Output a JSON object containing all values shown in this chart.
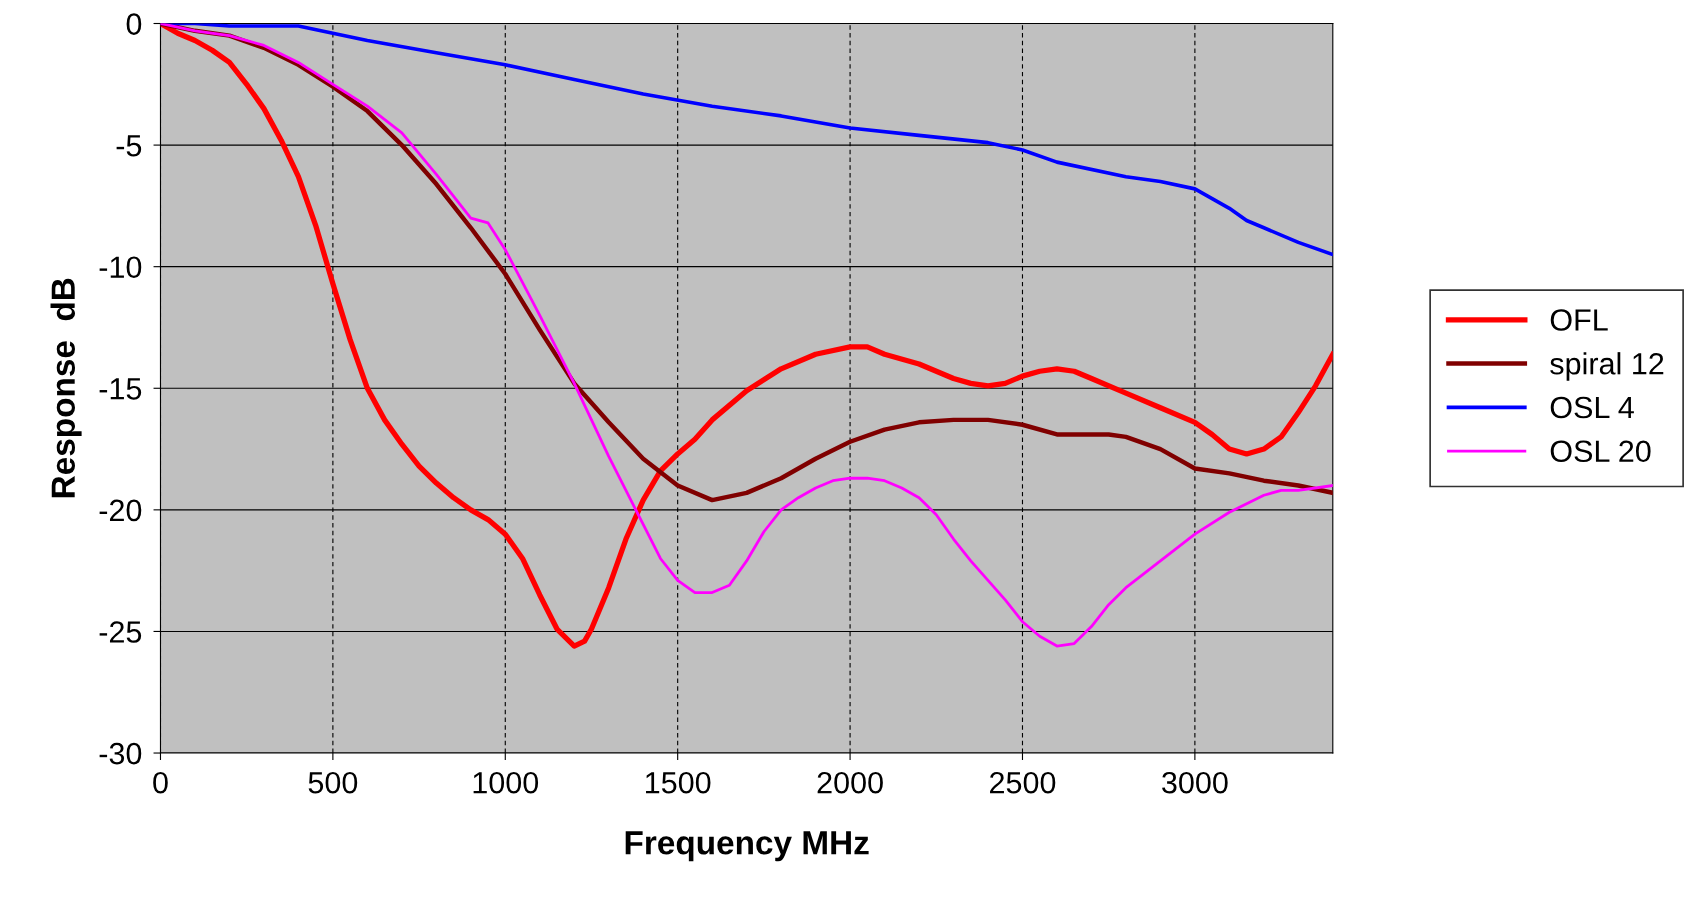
{
  "chart_data": {
    "type": "line",
    "xlabel": "Frequency MHz",
    "ylabel": "Response  dB",
    "xlim": [
      0,
      3400
    ],
    "xticks": [
      0,
      500,
      1000,
      1500,
      2000,
      2500,
      3000
    ],
    "ylim": [
      -30,
      0
    ],
    "yticks": [
      -30,
      -25,
      -20,
      -15,
      -10,
      -5,
      0
    ],
    "grid": true,
    "legend": "right",
    "marker": "none",
    "line_style": "solid",
    "series": [
      {
        "name": "OFL",
        "color": "#ff0000",
        "x": [
          0,
          50,
          100,
          150,
          200,
          250,
          300,
          350,
          400,
          450,
          500,
          550,
          600,
          650,
          700,
          750,
          800,
          850,
          900,
          950,
          1000,
          1050,
          1100,
          1150,
          1200,
          1230,
          1250,
          1300,
          1350,
          1400,
          1450,
          1500,
          1550,
          1600,
          1700,
          1800,
          1900,
          2000,
          2050,
          2100,
          2200,
          2250,
          2300,
          2350,
          2400,
          2450,
          2500,
          2550,
          2600,
          2650,
          2700,
          2800,
          2900,
          3000,
          3050,
          3100,
          3150,
          3200,
          3250,
          3300,
          3350,
          3400
        ],
        "values": [
          0,
          -0.4,
          -0.7,
          -1.1,
          -1.6,
          -2.5,
          -3.5,
          -4.8,
          -6.3,
          -8.3,
          -10.7,
          -13.0,
          -15.0,
          -16.3,
          -17.3,
          -18.2,
          -18.9,
          -19.5,
          -20.0,
          -20.4,
          -21.0,
          -22.0,
          -23.5,
          -24.9,
          -25.6,
          -25.4,
          -24.9,
          -23.2,
          -21.2,
          -19.6,
          -18.4,
          -17.7,
          -17.1,
          -16.3,
          -15.1,
          -14.2,
          -13.6,
          -13.3,
          -13.3,
          -13.6,
          -14.0,
          -14.3,
          -14.6,
          -14.8,
          -14.9,
          -14.8,
          -14.5,
          -14.3,
          -14.2,
          -14.3,
          -14.6,
          -15.2,
          -15.8,
          -16.4,
          -16.9,
          -17.5,
          -17.7,
          -17.5,
          -17.0,
          -16.0,
          -14.9,
          -13.6
        ]
      },
      {
        "name": "spiral 12",
        "color": "#800000",
        "x": [
          0,
          100,
          200,
          300,
          400,
          500,
          600,
          700,
          800,
          900,
          1000,
          1100,
          1200,
          1300,
          1400,
          1500,
          1600,
          1700,
          1800,
          1900,
          2000,
          2100,
          2200,
          2300,
          2400,
          2500,
          2600,
          2700,
          2750,
          2800,
          2900,
          3000,
          3100,
          3200,
          3300,
          3400
        ],
        "values": [
          0,
          -0.3,
          -0.5,
          -1.0,
          -1.7,
          -2.6,
          -3.6,
          -5.0,
          -6.6,
          -8.4,
          -10.3,
          -12.6,
          -14.8,
          -16.4,
          -17.9,
          -19.0,
          -19.6,
          -19.3,
          -18.7,
          -17.9,
          -17.2,
          -16.7,
          -16.4,
          -16.3,
          -16.3,
          -16.5,
          -16.9,
          -16.9,
          -16.9,
          -17.0,
          -17.5,
          -18.3,
          -18.5,
          -18.8,
          -19.0,
          -19.3
        ]
      },
      {
        "name": "OSL 4",
        "color": "#0000ff",
        "x": [
          0,
          100,
          200,
          300,
          400,
          500,
          600,
          800,
          1000,
          1200,
          1400,
          1600,
          1800,
          2000,
          2200,
          2400,
          2500,
          2600,
          2800,
          2900,
          3000,
          3050,
          3100,
          3150,
          3200,
          3300,
          3400
        ],
        "values": [
          0,
          0,
          -0.1,
          -0.1,
          -0.1,
          -0.4,
          -0.7,
          -1.2,
          -1.7,
          -2.3,
          -2.9,
          -3.4,
          -3.8,
          -4.3,
          -4.6,
          -4.9,
          -5.2,
          -5.7,
          -6.3,
          -6.5,
          -6.8,
          -7.2,
          -7.6,
          -8.1,
          -8.4,
          -9.0,
          -9.5
        ]
      },
      {
        "name": "OSL 20",
        "color": "#ff00ff",
        "x": [
          0,
          100,
          200,
          300,
          400,
          500,
          600,
          700,
          800,
          900,
          950,
          1000,
          1100,
          1200,
          1300,
          1400,
          1450,
          1500,
          1550,
          1600,
          1650,
          1700,
          1750,
          1800,
          1850,
          1900,
          1950,
          2000,
          2050,
          2100,
          2150,
          2200,
          2250,
          2300,
          2350,
          2400,
          2450,
          2500,
          2550,
          2600,
          2650,
          2700,
          2750,
          2800,
          2900,
          3000,
          3100,
          3200,
          3250,
          3300,
          3400
        ],
        "values": [
          0,
          -0.3,
          -0.5,
          -0.9,
          -1.6,
          -2.5,
          -3.4,
          -4.5,
          -6.2,
          -8.0,
          -8.2,
          -9.3,
          -12.0,
          -14.8,
          -17.8,
          -20.6,
          -22.0,
          -22.9,
          -23.4,
          -23.4,
          -23.1,
          -22.1,
          -20.9,
          -20.0,
          -19.5,
          -19.1,
          -18.8,
          -18.7,
          -18.7,
          -18.8,
          -19.1,
          -19.5,
          -20.2,
          -21.2,
          -22.1,
          -22.9,
          -23.7,
          -24.6,
          -25.2,
          -25.6,
          -25.5,
          -24.8,
          -23.9,
          -23.2,
          -22.1,
          -21.0,
          -20.1,
          -19.4,
          -19.2,
          -19.2,
          -19.0
        ]
      }
    ]
  }
}
